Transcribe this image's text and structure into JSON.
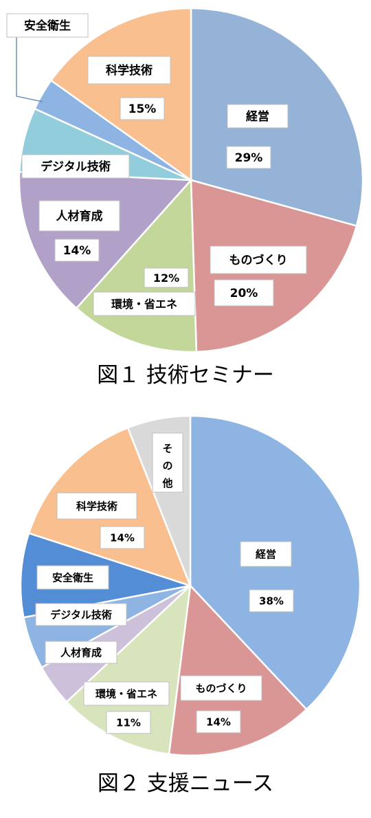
{
  "chart_data": [
    {
      "type": "pie",
      "title": "図１ 技術セミナー",
      "slices": [
        {
          "label": "経営",
          "value": 29,
          "value_text": "29%",
          "color": "#95b3d7"
        },
        {
          "label": "ものづくり",
          "value": 20,
          "value_text": "20%",
          "color": "#da9694"
        },
        {
          "label": "環境・省エネ",
          "value": 12,
          "value_text": "12%",
          "color": "#c4d79b"
        },
        {
          "label": "人材育成",
          "value": 14,
          "value_text": "14%",
          "color": "#b1a0c7"
        },
        {
          "label": "デジタル技術",
          "value": 6,
          "value_text": "",
          "color": "#92cddc"
        },
        {
          "label": "安全衛生",
          "value": 3,
          "value_text": "",
          "color": "#8db4e2"
        },
        {
          "label": "科学技術",
          "value": 15,
          "value_text": "15%",
          "color": "#fabf8f"
        }
      ]
    },
    {
      "type": "pie",
      "title": "図２ 支援ニュース",
      "slices": [
        {
          "label": "経営",
          "value": 38,
          "value_text": "38%",
          "color": "#8db4e2"
        },
        {
          "label": "ものづくり",
          "value": 14,
          "value_text": "14%",
          "color": "#da9694"
        },
        {
          "label": "環境・省エネ",
          "value": 11,
          "value_text": "11%",
          "color": "#d8e4bc"
        },
        {
          "label": "人材育成",
          "value": 4,
          "value_text": "",
          "color": "#ccc0da"
        },
        {
          "label": "デジタル技術",
          "value": 5,
          "value_text": "",
          "color": "#8db4e2"
        },
        {
          "label": "安全衛生",
          "value": 8,
          "value_text": "",
          "color": "#538dd5"
        },
        {
          "label": "科学技術",
          "value": 14,
          "value_text": "14%",
          "color": "#fabf8f"
        },
        {
          "label": "その他",
          "value": 6,
          "value_text": "",
          "color": "#d9d9d9"
        }
      ]
    }
  ]
}
